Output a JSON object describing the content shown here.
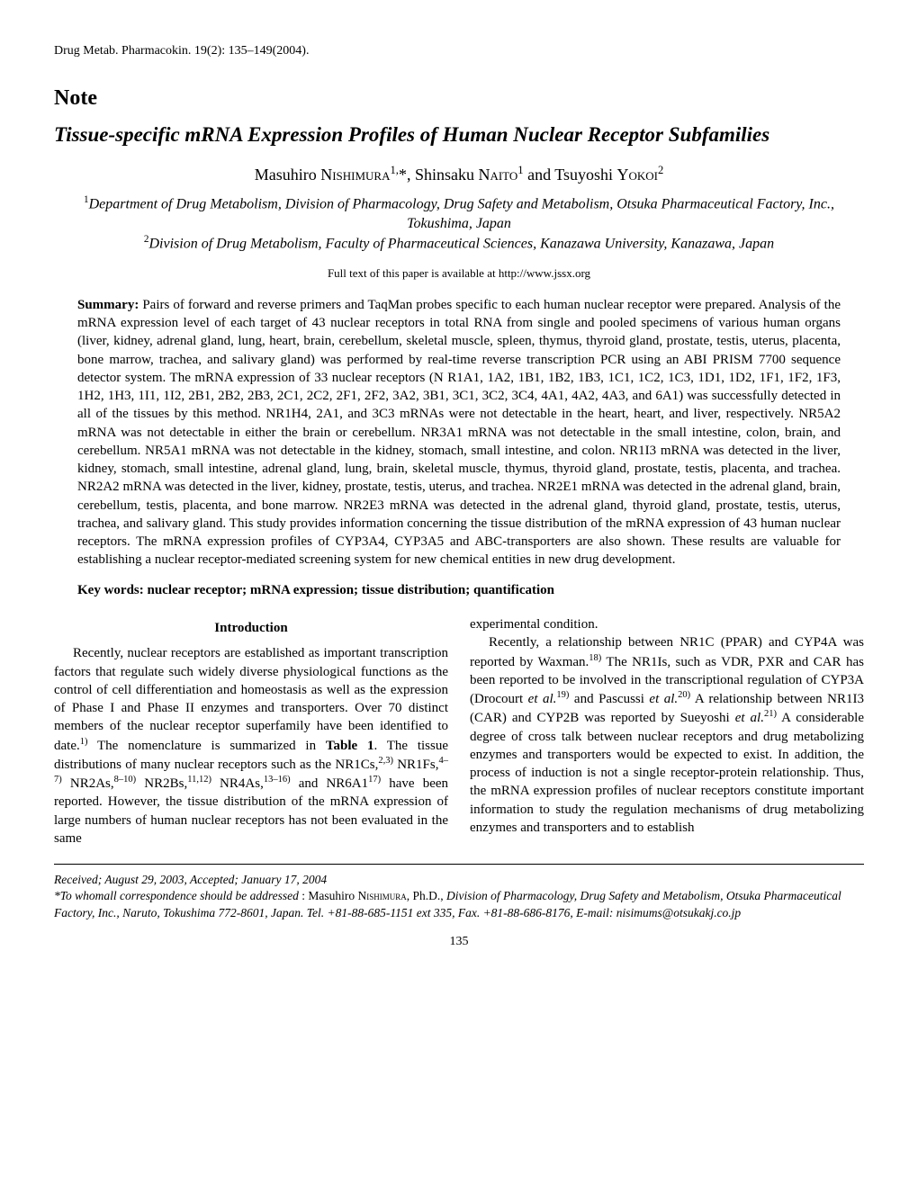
{
  "journal_line": "Drug Metab. Pharmacokin. 19(2): 135–149(2004).",
  "note_label": "Note",
  "title": "Tissue-specific mRNA Expression Profiles of Human Nuclear Receptor Subfamilies",
  "authors": {
    "a1": "Masuhiro ",
    "a1_sc": "Nishimura",
    "a1_sup": "1,",
    "star": "*",
    "sep1": ", ",
    "a2": "Shinsaku ",
    "a2_sc": "Naito",
    "a2_sup": "1",
    "sep2": " and ",
    "a3": "Tsuyoshi ",
    "a3_sc": "Yokoi",
    "a3_sup": "2"
  },
  "affil1_sup": "1",
  "affil1": "Department of Drug Metabolism, Division of Pharmacology, Drug Safety and Metabolism, Otsuka Pharmaceutical Factory, Inc., Tokushima, Japan",
  "affil2_sup": "2",
  "affil2": "Division of Drug Metabolism, Faculty of Pharmaceutical Sciences, Kanazawa University, Kanazawa, Japan",
  "fulltext": "Full text of this paper is available at http://www.jssx.org",
  "abstract_label": "Summary:",
  "abstract_text": " Pairs of forward and reverse primers and TaqMan probes specific to each human nuclear receptor were prepared. Analysis of the mRNA expression level of each target of 43 nuclear receptors in total RNA from single and pooled specimens of various human organs (liver, kidney, adrenal gland, lung, heart, brain, cerebellum, skeletal muscle, spleen, thymus, thyroid gland, prostate, testis, uterus, placenta, bone marrow, trachea, and salivary gland) was performed by real-time reverse transcription PCR using an ABI PRISM 7700 sequence detector system. The mRNA expression of 33 nuclear receptors (N R1A1, 1A2, 1B1, 1B2, 1B3, 1C1, 1C2, 1C3, 1D1, 1D2, 1F1, 1F2, 1F3, 1H2, 1H3, 1I1, 1I2, 2B1, 2B2, 2B3, 2C1, 2C2, 2F1, 2F2, 3A2, 3B1, 3C1, 3C2, 3C4, 4A1, 4A2, 4A3, and 6A1) was successfully detected in all of the tissues by this method. NR1H4, 2A1, and 3C3 mRNAs were not detectable in the heart, heart, and liver, respectively. NR5A2 mRNA was not detectable in either the brain or cerebellum. NR3A1 mRNA was not detectable in the small intestine, colon, brain, and cerebellum. NR5A1 mRNA was not detectable in the kidney, stomach, small intestine, and colon. NR1I3 mRNA was detected in the liver, kidney, stomach, small intestine, adrenal gland, lung, brain, skeletal muscle, thymus, thyroid gland, prostate, testis, placenta, and trachea. NR2A2 mRNA was detected in the liver, kidney, prostate, testis, uterus, and trachea. NR2E1 mRNA was detected in the adrenal gland, brain, cerebellum, testis, placenta, and bone marrow. NR2E3 mRNA was detected in the adrenal gland, thyroid gland, prostate, testis, uterus, trachea, and salivary gland. This study provides information concerning the tissue distribution of the mRNA expression of 43 human nuclear receptors. The mRNA expression profiles of CYP3A4, CYP3A5 and ABC-transporters are also shown. These results are valuable for establishing a nuclear receptor-mediated screening system for new chemical entities in new drug development.",
  "keywords": "Key words: nuclear receptor; mRNA expression; tissue distribution; quantification",
  "intro_heading": "Introduction",
  "intro_p1a": "Recently, nuclear receptors are established as important transcription factors that regulate such widely diverse physiological functions as the control of cell differentiation and homeostasis as well as the expression of Phase I and Phase II enzymes and transporters. Over 70 distinct members of the nuclear receptor superfamily have been identified to date.",
  "intro_p1b": " The nomenclature is summarized in ",
  "intro_p1_tbl": "Table 1",
  "intro_p1c": ". The tissue distributions of many nuclear receptors such as the NR1Cs,",
  "intro_p1d": " NR1Fs,",
  "intro_p1e": " NR2As,",
  "intro_p1f": " NR2Bs,",
  "intro_p1g": " NR4As,",
  "intro_p1h": " and NR6A1",
  "intro_p1i": " have been reported. However, the tissue distribution of the mRNA expression of large numbers of human nuclear receptors has not been evaluated in the same ",
  "sup1": "1)",
  "sup23": "2,3)",
  "sup47": "4–7)",
  "sup810": "8–10)",
  "sup1112": "11,12)",
  "sup1316": "13–16)",
  "sup17": "17)",
  "right_p0": "experimental condition.",
  "right_p1a": "Recently, a relationship between NR1C (PPAR) and CYP4A was reported by Waxman.",
  "right_p1b": " The NR1Is, such as VDR, PXR and CAR has been reported to be involved in the transcriptional regulation of CYP3A (Drocourt ",
  "right_p1c": " and Pascussi ",
  "right_p1d": " A relationship between NR1I3 (CAR) and CYP2B was reported by Sueyoshi ",
  "right_p1e": " A considerable degree of cross talk between nuclear receptors and drug metabolizing enzymes and transporters would be expected to exist. In addition, the process of induction is not a single receptor-protein relationship. Thus, the mRNA expression profiles of nuclear receptors constitute important information to study the regulation mechanisms of drug metabolizing enzymes and transporters and to establish",
  "etal": "et al.",
  "sup18": "18)",
  "sup19": "19)",
  "sup20": "20)",
  "sup21": "21)",
  "footer_received": "Received; August 29, 2003, Accepted; January 17, 2004",
  "footer_line2a": "*To whomall correspondence should be addressed",
  "footer_line2b": " : Masuhiro ",
  "footer_line2_sc": "Nishimura",
  "footer_line2c": ", Ph.D., ",
  "footer_line2d": "Division of Pharmacology, Drug Safety and Metabolism, Otsuka Pharmaceutical Factory, Inc., Naruto, Tokushima 772-8601, Japan. Tel. +81-88-685-1151 ext 335, Fax. +81-88-686-8176, E-mail: nisimums@otsukakj.co.jp",
  "page_number": "135"
}
